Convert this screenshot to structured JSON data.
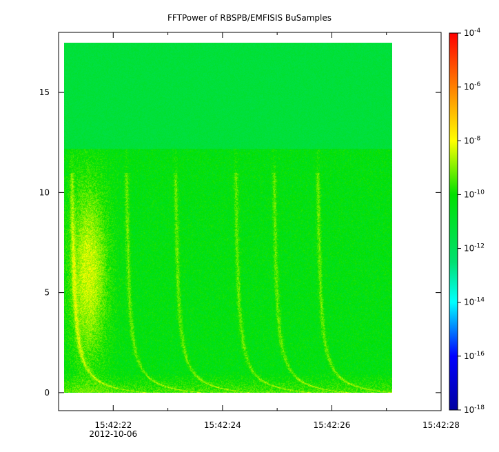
{
  "chart_data": {
    "type": "heatmap",
    "title": "FFTPower of RBSPB/EMFISIS  BuSamples",
    "xlabel": "",
    "ylabel": "",
    "x_axis": {
      "kind": "time",
      "ticks": [
        {
          "time": "15:42:22",
          "date": "2012-10-06"
        },
        {
          "time": "15:42:24",
          "date": ""
        },
        {
          "time": "15:42:26",
          "date": ""
        },
        {
          "time": "15:42:28",
          "date": ""
        }
      ],
      "minor_ticks": [
        "15:42:21",
        "15:42:23",
        "15:42:25",
        "15:42:27"
      ],
      "range": [
        "15:42:21.0",
        "15:42:28.0"
      ]
    },
    "y_axis": {
      "ticks": [
        0,
        5,
        10,
        15
      ],
      "range": [
        -0.9,
        18.0
      ]
    },
    "data_extent": {
      "t_start": "15:42:21.1",
      "t_end": "15:42:27.1",
      "f_min": 0,
      "f_max": 17.5
    },
    "colorbar": {
      "scale": "log",
      "range_exponent": [
        -18,
        -4
      ],
      "tick_exponents": [
        -4,
        -6,
        -8,
        -10,
        -12,
        -14,
        -16,
        -18
      ],
      "colors": [
        "#0000a0",
        "#0000ff",
        "#00ffff",
        "#00e070",
        "#00e000",
        "#ffff00",
        "#ff8000",
        "#ff0000"
      ]
    },
    "features": {
      "upper_band_power_exponent": -11.3,
      "upper_band_start_freq": 12.2,
      "lower_band_power_exponent": -10.0,
      "whistler_onsets": [
        "15:42:21.5",
        "15:42:22.5",
        "15:42:23.4",
        "15:42:24.5",
        "15:42:25.2",
        "15:42:26.0"
      ]
    }
  }
}
